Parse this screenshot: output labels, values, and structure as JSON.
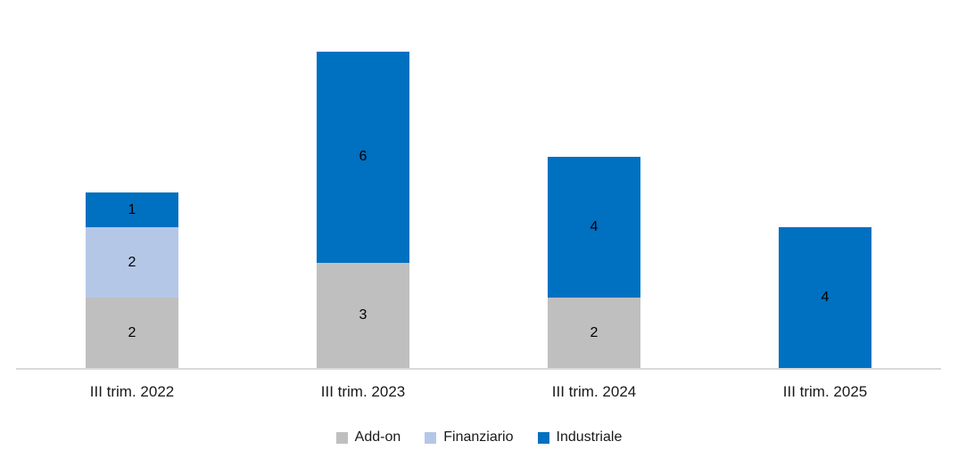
{
  "chart_data": {
    "type": "bar",
    "stacked": true,
    "title": "",
    "categories": [
      "III trim. 2022",
      "III trim. 2023",
      "III trim. 2024",
      "III trim. 2025"
    ],
    "series": [
      {
        "name": "Add-on",
        "color": "#BFBFBF",
        "values": [
          2,
          3,
          2,
          0
        ]
      },
      {
        "name": "Finanziario",
        "color": "#B4C7E7",
        "values": [
          2,
          0,
          0,
          0
        ]
      },
      {
        "name": "Industriale",
        "color": "#0070C0",
        "values": [
          1,
          6,
          4,
          4
        ]
      }
    ],
    "data_labels": {
      "visible": true,
      "color": "#000000"
    },
    "xlabel": "",
    "ylabel": "",
    "ylim": [
      0,
      9
    ],
    "grid": false,
    "y_axis_visible": false,
    "legend_position": "bottom",
    "colors": {
      "axis_line": "#D9D9D9",
      "axis_label_text": "#1A1A1A",
      "legend_text": "#1A1A1A",
      "background": "#FFFFFF"
    }
  }
}
